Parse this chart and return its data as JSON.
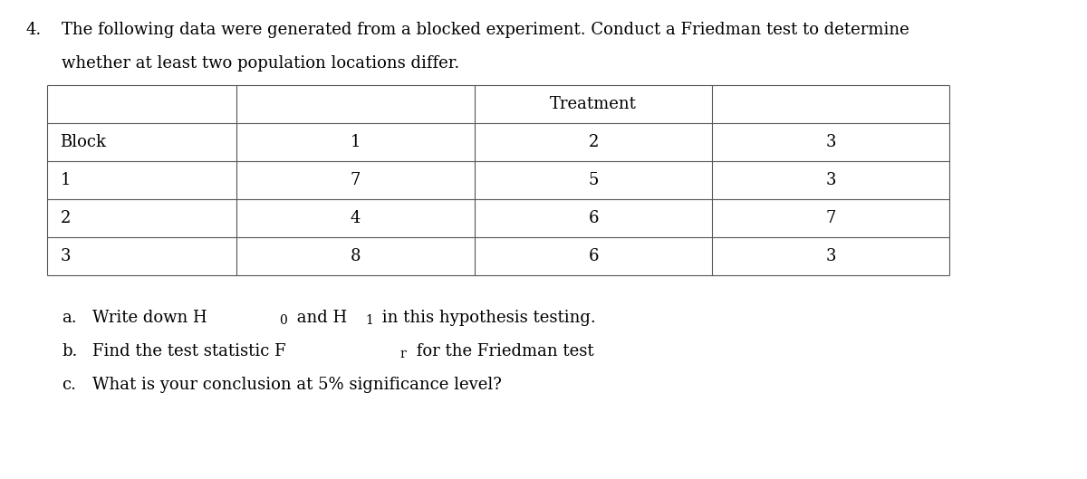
{
  "question_number": "4.",
  "question_text_line1": "The following data were generated from a blocked experiment. Conduct a Friedman test to determine",
  "question_text_line2": "whether at least two population locations differ.",
  "treatment_label": "Treatment",
  "col_headers": [
    "Block",
    "1",
    "2",
    "3"
  ],
  "rows": [
    [
      "1",
      "7",
      "5",
      "3"
    ],
    [
      "2",
      "4",
      "6",
      "7"
    ],
    [
      "3",
      "8",
      "6",
      "3"
    ]
  ],
  "bg_color": "#ffffff",
  "text_color": "#000000",
  "font_size": 13,
  "table_line_color": "#555555"
}
